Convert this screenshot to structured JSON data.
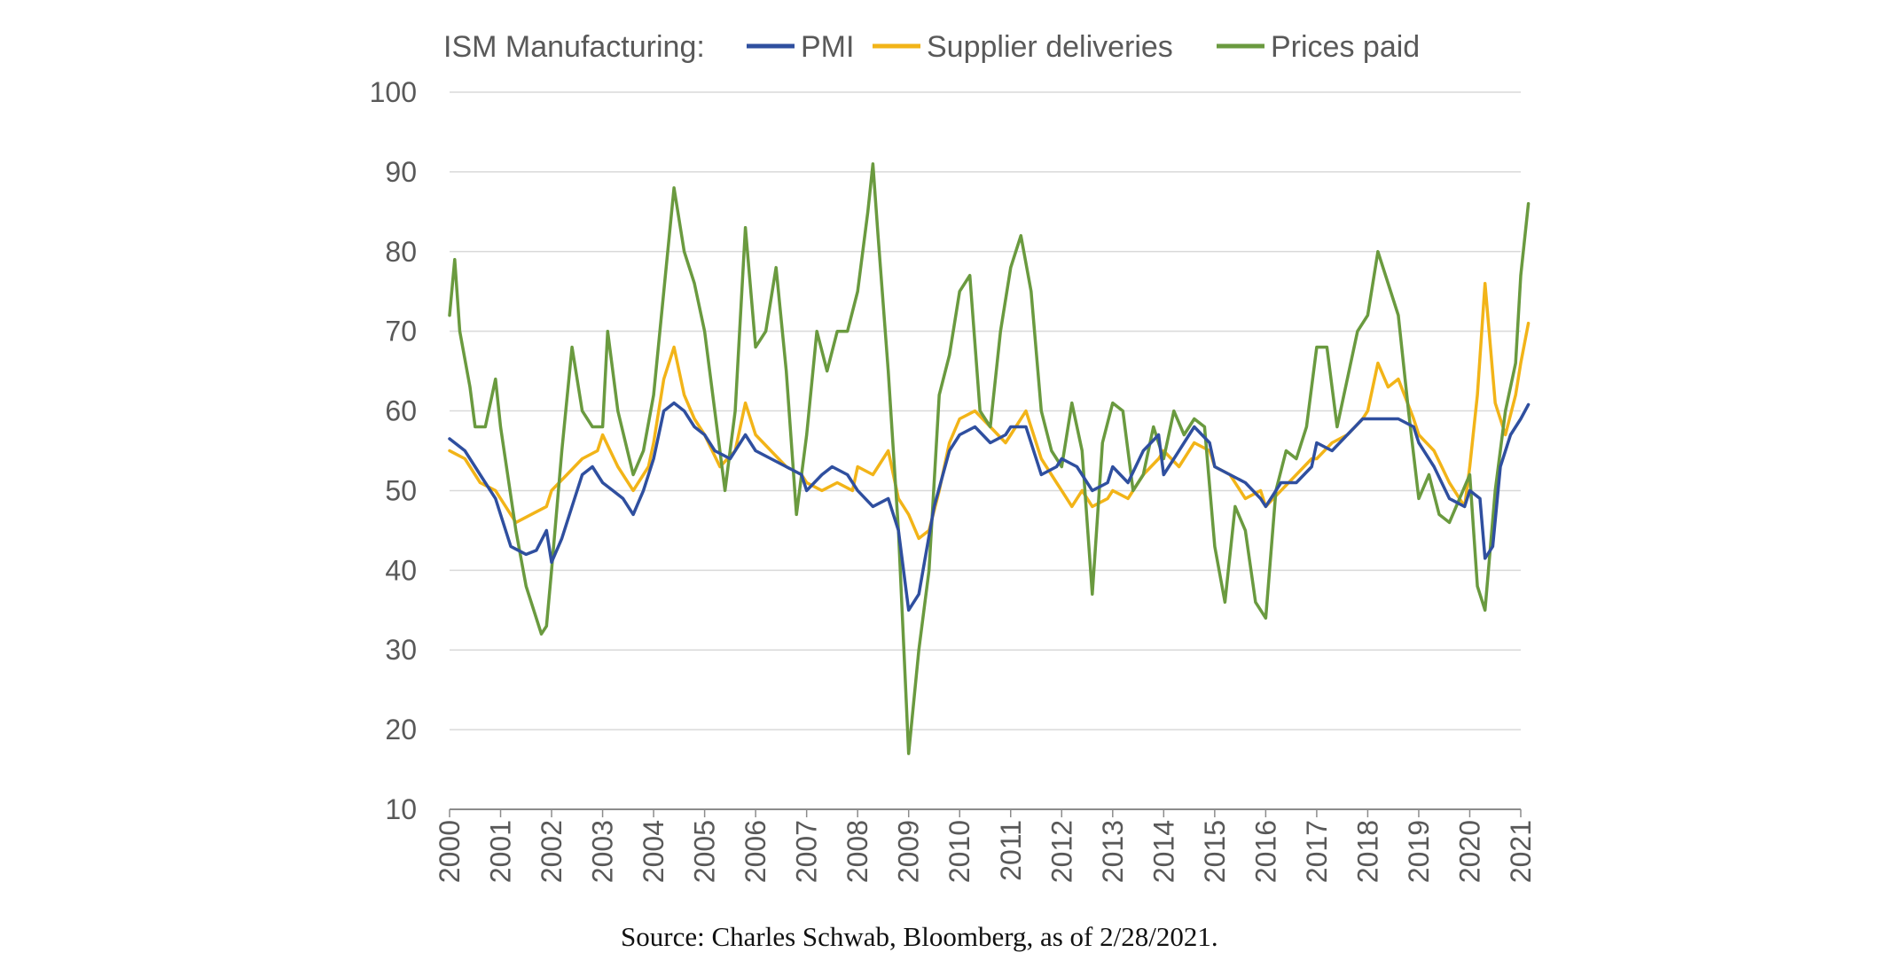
{
  "chart_data": {
    "type": "line",
    "title": "ISM Manufacturing:",
    "xlabel": "",
    "ylabel": "",
    "ylim": [
      10,
      100
    ],
    "yticks": [
      "100",
      "90",
      "80",
      "70",
      "60",
      "50",
      "40",
      "30",
      "20",
      "10"
    ],
    "xlim": [
      2000,
      2021
    ],
    "xticks": [
      "2000",
      "2001",
      "2002",
      "2003",
      "2004",
      "2005",
      "2006",
      "2007",
      "2008",
      "2009",
      "2010",
      "2011",
      "2012",
      "2013",
      "2014",
      "2015",
      "2016",
      "2017",
      "2018",
      "2019",
      "2020",
      "2021"
    ],
    "grid": "horizontal",
    "legend": "top",
    "source": "Source: Charles Schwab, Bloomberg, as of 2/28/2021.",
    "series": [
      {
        "name": "PMI",
        "color": "#2f4f9f",
        "points": [
          [
            2000.0,
            56.5
          ],
          [
            2000.3,
            55
          ],
          [
            2000.6,
            52
          ],
          [
            2000.9,
            49
          ],
          [
            2001.0,
            47
          ],
          [
            2001.2,
            43
          ],
          [
            2001.5,
            42
          ],
          [
            2001.7,
            42.5
          ],
          [
            2001.9,
            45
          ],
          [
            2002.0,
            41
          ],
          [
            2002.2,
            44
          ],
          [
            2002.4,
            48
          ],
          [
            2002.6,
            52
          ],
          [
            2002.8,
            53
          ],
          [
            2003.0,
            51
          ],
          [
            2003.2,
            50
          ],
          [
            2003.4,
            49
          ],
          [
            2003.6,
            47
          ],
          [
            2003.8,
            50
          ],
          [
            2004.0,
            54
          ],
          [
            2004.2,
            60
          ],
          [
            2004.4,
            61
          ],
          [
            2004.6,
            60
          ],
          [
            2004.8,
            58
          ],
          [
            2005.0,
            57
          ],
          [
            2005.2,
            55
          ],
          [
            2005.5,
            54
          ],
          [
            2005.8,
            57
          ],
          [
            2006.0,
            55
          ],
          [
            2006.3,
            54
          ],
          [
            2006.6,
            53
          ],
          [
            2006.9,
            52
          ],
          [
            2007.0,
            50
          ],
          [
            2007.3,
            52
          ],
          [
            2007.5,
            53
          ],
          [
            2007.8,
            52
          ],
          [
            2008.0,
            50
          ],
          [
            2008.3,
            48
          ],
          [
            2008.6,
            49
          ],
          [
            2008.8,
            45
          ],
          [
            2009.0,
            35
          ],
          [
            2009.2,
            37
          ],
          [
            2009.5,
            48
          ],
          [
            2009.8,
            55
          ],
          [
            2010.0,
            57
          ],
          [
            2010.3,
            58
          ],
          [
            2010.6,
            56
          ],
          [
            2010.9,
            57
          ],
          [
            2011.0,
            58
          ],
          [
            2011.3,
            58
          ],
          [
            2011.6,
            52
          ],
          [
            2011.9,
            53
          ],
          [
            2012.0,
            54
          ],
          [
            2012.3,
            53
          ],
          [
            2012.6,
            50
          ],
          [
            2012.9,
            51
          ],
          [
            2013.0,
            53
          ],
          [
            2013.3,
            51
          ],
          [
            2013.6,
            55
          ],
          [
            2013.9,
            57
          ],
          [
            2014.0,
            52
          ],
          [
            2014.3,
            55
          ],
          [
            2014.6,
            58
          ],
          [
            2014.9,
            56
          ],
          [
            2015.0,
            53
          ],
          [
            2015.3,
            52
          ],
          [
            2015.6,
            51
          ],
          [
            2015.9,
            49
          ],
          [
            2016.0,
            48
          ],
          [
            2016.3,
            51
          ],
          [
            2016.6,
            51
          ],
          [
            2016.9,
            53
          ],
          [
            2017.0,
            56
          ],
          [
            2017.3,
            55
          ],
          [
            2017.6,
            57
          ],
          [
            2017.9,
            59
          ],
          [
            2018.0,
            59
          ],
          [
            2018.3,
            59
          ],
          [
            2018.6,
            59
          ],
          [
            2018.9,
            58
          ],
          [
            2019.0,
            56
          ],
          [
            2019.3,
            53
          ],
          [
            2019.6,
            49
          ],
          [
            2019.9,
            48
          ],
          [
            2020.0,
            50
          ],
          [
            2020.2,
            49
          ],
          [
            2020.3,
            41.5
          ],
          [
            2020.45,
            43
          ],
          [
            2020.6,
            53
          ],
          [
            2020.8,
            57
          ],
          [
            2021.0,
            59
          ],
          [
            2021.15,
            60.8
          ]
        ]
      },
      {
        "name": "Supplier deliveries",
        "color": "#f2b418",
        "points": [
          [
            2000.0,
            55
          ],
          [
            2000.3,
            54
          ],
          [
            2000.6,
            51
          ],
          [
            2000.9,
            50
          ],
          [
            2001.0,
            49
          ],
          [
            2001.3,
            46
          ],
          [
            2001.6,
            47
          ],
          [
            2001.9,
            48
          ],
          [
            2002.0,
            50
          ],
          [
            2002.3,
            52
          ],
          [
            2002.6,
            54
          ],
          [
            2002.9,
            55
          ],
          [
            2003.0,
            57
          ],
          [
            2003.3,
            53
          ],
          [
            2003.6,
            50
          ],
          [
            2003.9,
            53
          ],
          [
            2004.0,
            56
          ],
          [
            2004.2,
            64
          ],
          [
            2004.4,
            68
          ],
          [
            2004.6,
            62
          ],
          [
            2004.8,
            59
          ],
          [
            2005.0,
            57
          ],
          [
            2005.3,
            53
          ],
          [
            2005.6,
            55
          ],
          [
            2005.8,
            61
          ],
          [
            2006.0,
            57
          ],
          [
            2006.3,
            55
          ],
          [
            2006.6,
            53
          ],
          [
            2006.9,
            52
          ],
          [
            2007.0,
            51
          ],
          [
            2007.3,
            50
          ],
          [
            2007.6,
            51
          ],
          [
            2007.9,
            50
          ],
          [
            2008.0,
            53
          ],
          [
            2008.3,
            52
          ],
          [
            2008.6,
            55
          ],
          [
            2008.8,
            49
          ],
          [
            2009.0,
            47
          ],
          [
            2009.2,
            44
          ],
          [
            2009.4,
            45
          ],
          [
            2009.6,
            50
          ],
          [
            2009.8,
            56
          ],
          [
            2010.0,
            59
          ],
          [
            2010.3,
            60
          ],
          [
            2010.6,
            58
          ],
          [
            2010.9,
            56
          ],
          [
            2011.0,
            57
          ],
          [
            2011.3,
            60
          ],
          [
            2011.6,
            54
          ],
          [
            2011.9,
            51
          ],
          [
            2012.0,
            50
          ],
          [
            2012.2,
            48
          ],
          [
            2012.4,
            50
          ],
          [
            2012.6,
            48
          ],
          [
            2012.9,
            49
          ],
          [
            2013.0,
            50
          ],
          [
            2013.3,
            49
          ],
          [
            2013.6,
            52
          ],
          [
            2013.9,
            54
          ],
          [
            2014.0,
            55
          ],
          [
            2014.3,
            53
          ],
          [
            2014.6,
            56
          ],
          [
            2014.9,
            55
          ],
          [
            2015.0,
            53
          ],
          [
            2015.3,
            52
          ],
          [
            2015.6,
            49
          ],
          [
            2015.9,
            50
          ],
          [
            2016.0,
            48
          ],
          [
            2016.3,
            50
          ],
          [
            2016.6,
            52
          ],
          [
            2016.9,
            54
          ],
          [
            2017.0,
            54
          ],
          [
            2017.3,
            56
          ],
          [
            2017.6,
            57
          ],
          [
            2017.9,
            59
          ],
          [
            2018.0,
            60
          ],
          [
            2018.2,
            66
          ],
          [
            2018.4,
            63
          ],
          [
            2018.6,
            64
          ],
          [
            2018.9,
            59
          ],
          [
            2019.0,
            57
          ],
          [
            2019.3,
            55
          ],
          [
            2019.6,
            51
          ],
          [
            2019.9,
            48
          ],
          [
            2020.0,
            53
          ],
          [
            2020.15,
            62
          ],
          [
            2020.3,
            76
          ],
          [
            2020.5,
            61
          ],
          [
            2020.7,
            57
          ],
          [
            2020.9,
            62
          ],
          [
            2021.0,
            66
          ],
          [
            2021.15,
            71
          ]
        ]
      },
      {
        "name": "Prices paid",
        "color": "#6a9a3f",
        "points": [
          [
            2000.0,
            72
          ],
          [
            2000.1,
            79
          ],
          [
            2000.2,
            70
          ],
          [
            2000.4,
            63
          ],
          [
            2000.5,
            58
          ],
          [
            2000.7,
            58
          ],
          [
            2000.9,
            64
          ],
          [
            2001.0,
            58
          ],
          [
            2001.3,
            45
          ],
          [
            2001.5,
            38
          ],
          [
            2001.8,
            32
          ],
          [
            2001.9,
            33
          ],
          [
            2002.0,
            40
          ],
          [
            2002.2,
            55
          ],
          [
            2002.4,
            68
          ],
          [
            2002.6,
            60
          ],
          [
            2002.8,
            58
          ],
          [
            2003.0,
            58
          ],
          [
            2003.1,
            70
          ],
          [
            2003.3,
            60
          ],
          [
            2003.6,
            52
          ],
          [
            2003.8,
            55
          ],
          [
            2004.0,
            62
          ],
          [
            2004.2,
            75
          ],
          [
            2004.4,
            88
          ],
          [
            2004.6,
            80
          ],
          [
            2004.8,
            76
          ],
          [
            2005.0,
            70
          ],
          [
            2005.2,
            60
          ],
          [
            2005.4,
            50
          ],
          [
            2005.6,
            60
          ],
          [
            2005.8,
            83
          ],
          [
            2006.0,
            68
          ],
          [
            2006.2,
            70
          ],
          [
            2006.4,
            78
          ],
          [
            2006.6,
            65
          ],
          [
            2006.8,
            47
          ],
          [
            2007.0,
            57
          ],
          [
            2007.2,
            70
          ],
          [
            2007.4,
            65
          ],
          [
            2007.6,
            70
          ],
          [
            2007.8,
            70
          ],
          [
            2008.0,
            75
          ],
          [
            2008.2,
            85
          ],
          [
            2008.3,
            91
          ],
          [
            2008.4,
            82
          ],
          [
            2008.6,
            65
          ],
          [
            2008.8,
            45
          ],
          [
            2009.0,
            17
          ],
          [
            2009.2,
            30
          ],
          [
            2009.4,
            40
          ],
          [
            2009.6,
            62
          ],
          [
            2009.8,
            67
          ],
          [
            2010.0,
            75
          ],
          [
            2010.2,
            77
          ],
          [
            2010.4,
            60
          ],
          [
            2010.6,
            58
          ],
          [
            2010.8,
            70
          ],
          [
            2011.0,
            78
          ],
          [
            2011.2,
            82
          ],
          [
            2011.4,
            75
          ],
          [
            2011.6,
            60
          ],
          [
            2011.8,
            55
          ],
          [
            2012.0,
            53
          ],
          [
            2012.2,
            61
          ],
          [
            2012.4,
            55
          ],
          [
            2012.6,
            37
          ],
          [
            2012.8,
            56
          ],
          [
            2013.0,
            61
          ],
          [
            2013.2,
            60
          ],
          [
            2013.4,
            50
          ],
          [
            2013.6,
            52
          ],
          [
            2013.8,
            58
          ],
          [
            2014.0,
            54
          ],
          [
            2014.2,
            60
          ],
          [
            2014.4,
            57
          ],
          [
            2014.6,
            59
          ],
          [
            2014.8,
            58
          ],
          [
            2015.0,
            43
          ],
          [
            2015.2,
            36
          ],
          [
            2015.4,
            48
          ],
          [
            2015.6,
            45
          ],
          [
            2015.8,
            36
          ],
          [
            2016.0,
            34
          ],
          [
            2016.2,
            50
          ],
          [
            2016.4,
            55
          ],
          [
            2016.6,
            54
          ],
          [
            2016.8,
            58
          ],
          [
            2017.0,
            68
          ],
          [
            2017.2,
            68
          ],
          [
            2017.4,
            58
          ],
          [
            2017.6,
            64
          ],
          [
            2017.8,
            70
          ],
          [
            2018.0,
            72
          ],
          [
            2018.2,
            80
          ],
          [
            2018.4,
            76
          ],
          [
            2018.6,
            72
          ],
          [
            2018.8,
            60
          ],
          [
            2019.0,
            49
          ],
          [
            2019.2,
            52
          ],
          [
            2019.4,
            47
          ],
          [
            2019.6,
            46
          ],
          [
            2019.8,
            49
          ],
          [
            2020.0,
            52
          ],
          [
            2020.15,
            38
          ],
          [
            2020.3,
            35
          ],
          [
            2020.5,
            50
          ],
          [
            2020.7,
            60
          ],
          [
            2020.9,
            66
          ],
          [
            2021.0,
            77
          ],
          [
            2021.15,
            86
          ]
        ]
      }
    ]
  }
}
